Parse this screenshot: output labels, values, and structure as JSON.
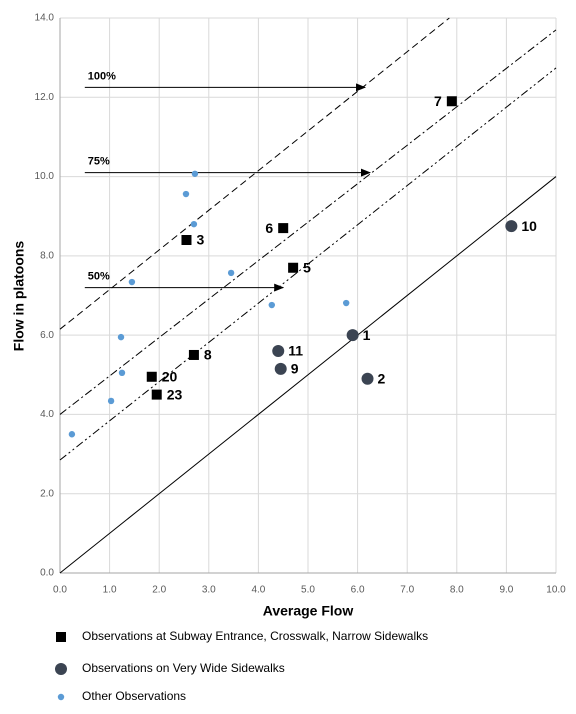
{
  "chart_data": {
    "type": "scatter",
    "x_label": "Average Flow",
    "y_label": "Flow in platoons",
    "xlim": [
      0,
      10
    ],
    "ylim": [
      0,
      14
    ],
    "xticks": [
      {
        "value": 0,
        "label": "0.0"
      },
      {
        "value": 1,
        "label": "1.0"
      },
      {
        "value": 2,
        "label": "2.0"
      },
      {
        "value": 3,
        "label": "3.0"
      },
      {
        "value": 4,
        "label": "4.0"
      },
      {
        "value": 5,
        "label": "5.0"
      },
      {
        "value": 6,
        "label": "6.0"
      },
      {
        "value": 7,
        "label": "7.0"
      },
      {
        "value": 8,
        "label": "8.0"
      },
      {
        "value": 9,
        "label": "9.0"
      },
      {
        "value": 10,
        "label": "10.0"
      }
    ],
    "yticks": [
      {
        "value": 0,
        "label": "0.0"
      },
      {
        "value": 2,
        "label": "2.0"
      },
      {
        "value": 4,
        "label": "4.0"
      },
      {
        "value": 6,
        "label": "6.0"
      },
      {
        "value": 8,
        "label": "8.0"
      },
      {
        "value": 10,
        "label": "10.0"
      },
      {
        "value": 12,
        "label": "12.0"
      },
      {
        "value": 14,
        "label": "14.0"
      }
    ],
    "grid": true,
    "series": [
      {
        "name": "Observations at Subway Entrance,  Crosswalk,  Narrow Sidewalks",
        "marker": "square",
        "color": "#000000",
        "x": [
          7.9,
          2.55,
          4.5,
          4.7,
          2.7,
          1.85,
          1.95
        ],
        "values": [
          11.9,
          8.4,
          8.7,
          7.7,
          5.5,
          4.95,
          4.5
        ],
        "labels": [
          "7",
          "3",
          "6",
          "5",
          "8",
          "20",
          "23"
        ]
      },
      {
        "name": "Observations on Very Wide Sidewalks",
        "marker": "circle",
        "color": "#3b4452",
        "x": [
          9.1,
          5.9,
          4.4,
          4.45,
          6.2
        ],
        "values": [
          8.75,
          6.0,
          5.6,
          5.15,
          4.9
        ],
        "labels": [
          "10",
          "1",
          "11",
          "9",
          "2"
        ]
      },
      {
        "name": "Other Observations",
        "marker": "dot",
        "color": "#5b9bd5",
        "x": [
          0.24,
          1.03,
          1.25,
          1.23,
          1.45,
          2.54,
          2.7,
          2.72,
          3.45,
          4.27,
          5.77
        ],
        "values": [
          3.5,
          4.34,
          5.05,
          5.95,
          7.34,
          9.56,
          8.8,
          10.07,
          7.57,
          6.76,
          6.81
        ]
      }
    ],
    "lines": [
      {
        "style": "solid",
        "x": [
          0,
          10
        ],
        "values": [
          0,
          10
        ]
      },
      {
        "style": "dashed",
        "x": [
          0,
          7.85
        ],
        "values": [
          6.15,
          14
        ]
      },
      {
        "style": "dashdot",
        "x": [
          0,
          10
        ],
        "values": [
          4.0,
          13.7
        ]
      },
      {
        "style": "dashdotdot",
        "x": [
          0,
          10
        ],
        "values": [
          2.85,
          12.74
        ]
      }
    ],
    "annotations": [
      {
        "text": "100%",
        "x": [
          0.5,
          6.15
        ],
        "values": [
          12.25,
          12.25
        ]
      },
      {
        "text": "75%",
        "x": [
          0.5,
          6.25
        ],
        "values": [
          10.1,
          10.1
        ]
      },
      {
        "text": "50%",
        "x": [
          0.5,
          4.5
        ],
        "values": [
          7.2,
          7.2
        ]
      }
    ]
  }
}
